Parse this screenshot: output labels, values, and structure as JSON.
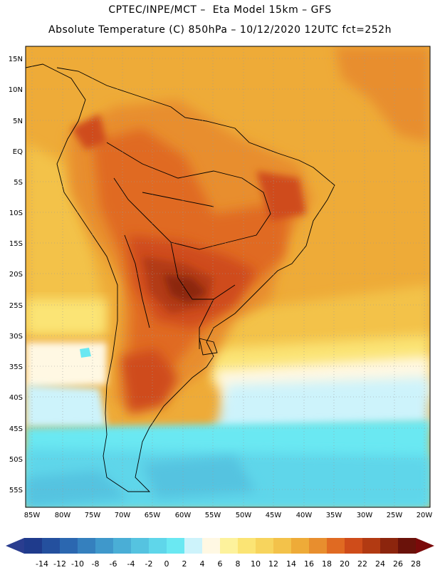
{
  "header": {
    "title_line1": "CPTEC/INPE/MCT –  Eta Model 15km – GFS",
    "title_line2": "Absolute Temperature (C) 850hPa – 10/12/2020 12UTC fct=252h"
  },
  "map": {
    "lat_labels": [
      "15N",
      "10N",
      "5N",
      "EQ",
      "5S",
      "10S",
      "15S",
      "20S",
      "25S",
      "30S",
      "35S",
      "40S",
      "45S",
      "50S",
      "55S"
    ],
    "lon_labels": [
      "85W",
      "80W",
      "75W",
      "70W",
      "65W",
      "60W",
      "55W",
      "50W",
      "45W",
      "40W",
      "35W",
      "30W",
      "25W",
      "20W"
    ]
  },
  "colorbar": {
    "labels": [
      "-14",
      "-12",
      "-10",
      "-8",
      "-6",
      "-4",
      "-2",
      "0",
      "2",
      "4",
      "6",
      "8",
      "10",
      "12",
      "14",
      "16",
      "18",
      "20",
      "22",
      "24",
      "26",
      "28"
    ],
    "low_color": "#2a3d8f",
    "high_color": "#7a0a0a",
    "colors": [
      "#1f3b8c",
      "#24509e",
      "#2b67b0",
      "#3580be",
      "#3f98cb",
      "#4aaed6",
      "#55c3e0",
      "#5fd6ea",
      "#6ae8f2",
      "#cdf3fb",
      "#fff8e3",
      "#fdf29c",
      "#fbe474",
      "#f7d45d",
      "#f3c24a",
      "#eeab38",
      "#e88e2e",
      "#e06a22",
      "#cf4c1a",
      "#b23a12",
      "#8c250d",
      "#6a120a"
    ]
  }
}
